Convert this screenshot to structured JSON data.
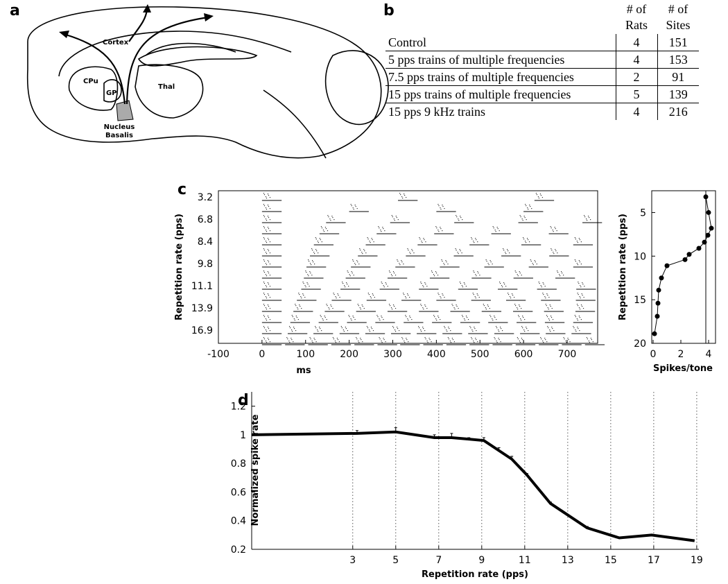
{
  "panel_labels": [
    "a",
    "b",
    "c",
    "d"
  ],
  "diagram": {
    "cortex": "Cortex",
    "cpu": "CPu",
    "gp": "GP",
    "thal": "Thal",
    "nucleus_basalis": [
      "Nucleus",
      "Basalis"
    ]
  },
  "table": {
    "header": [
      "# of Rats",
      "# of Sites"
    ],
    "rows": [
      [
        "Control",
        4,
        151
      ],
      [
        "5 pps trains of multiple frequencies",
        4,
        153
      ],
      [
        "7.5 pps trains of multiple frequencies",
        2,
        91
      ],
      [
        "15 pps trains of multiple frequencies",
        5,
        139
      ],
      [
        "15 pps 9 kHz trains",
        4,
        216
      ]
    ]
  },
  "chart_data": [
    {
      "type": "raster",
      "xlabel": "ms",
      "ylabel": "Repetition rate (pps)",
      "categories": [
        "3.2",
        null,
        "6.8",
        null,
        "8.4",
        null,
        "9.8",
        null,
        "11.1",
        null,
        "13.9",
        null,
        "16.9",
        null
      ],
      "onsets": [
        [
          0,
          312,
          625
        ],
        [
          0,
          200,
          400,
          600
        ],
        [
          0,
          147,
          294,
          441,
          588,
          735
        ],
        [
          0,
          132,
          263,
          395,
          526,
          658
        ],
        [
          0,
          119,
          238,
          357,
          476,
          595,
          714
        ],
        [
          0,
          110,
          220,
          330,
          440,
          549,
          659
        ],
        [
          0,
          102,
          204,
          306,
          408,
          510,
          612,
          714
        ],
        [
          0,
          96,
          192,
          288,
          385,
          481,
          577,
          673
        ],
        [
          0,
          90,
          180,
          270,
          360,
          450,
          541,
          631,
          721
        ],
        [
          0,
          80,
          160,
          240,
          320,
          400,
          480,
          560,
          640,
          720
        ],
        [
          0,
          72,
          144,
          216,
          288,
          360,
          432,
          504,
          576,
          647,
          719
        ],
        [
          0,
          65,
          130,
          195,
          260,
          325,
          390,
          455,
          519,
          584,
          649,
          714
        ],
        [
          0,
          59,
          118,
          178,
          237,
          296,
          355,
          414,
          473,
          533,
          592,
          651,
          710
        ],
        [
          0,
          53,
          106,
          159,
          212,
          265,
          317,
          370,
          423,
          476,
          529,
          582,
          635,
          688,
          741
        ]
      ],
      "xlim": [
        -100,
        770
      ],
      "xticks": [
        -100,
        0,
        100,
        200,
        300,
        400,
        500,
        600,
        700
      ]
    },
    {
      "type": "line",
      "xlabel": "Spikes/tone",
      "ylabel": "Repetition rate (pps)",
      "x": [
        3.8,
        4.0,
        4.2,
        3.95,
        3.7,
        3.3,
        2.6,
        2.3,
        1.0,
        0.6,
        0.4,
        0.35,
        0.3,
        0.1
      ],
      "values": [
        3.2,
        5.0,
        6.8,
        7.6,
        8.4,
        9.1,
        9.8,
        10.4,
        11.1,
        12.5,
        13.9,
        15.4,
        16.9,
        18.9
      ],
      "xlim": [
        -0.1,
        4.5
      ],
      "xticks": [
        0,
        2,
        4
      ],
      "ylim": [
        20,
        2.5
      ],
      "yticks": [
        5,
        10,
        15,
        20
      ],
      "vline": 3.8,
      "color": "#000000",
      "markers": true
    },
    {
      "type": "line",
      "xlabel": "Repetition rate (pps)",
      "ylabel": "Normalized spike rate",
      "x": [
        -1.7,
        3.2,
        5,
        6.8,
        7.6,
        8.4,
        9.1,
        9.8,
        10.4,
        11.1,
        12.2,
        13.9,
        15.4,
        16.9,
        18.9
      ],
      "values": [
        1.0,
        1.01,
        1.02,
        0.98,
        0.98,
        0.97,
        0.96,
        0.89,
        0.83,
        0.72,
        0.52,
        0.35,
        0.28,
        0.3,
        0.26
      ],
      "errors": [
        0,
        0.02,
        0.03,
        0.02,
        0.03,
        0.01,
        0.02,
        0.02,
        0.02,
        0.01,
        0.01,
        0.01,
        0,
        0,
        0
      ],
      "xlim": [
        -1.7,
        19.1
      ],
      "xticks": [
        3,
        5,
        7,
        9,
        11,
        13,
        15,
        17,
        19
      ],
      "ylim": [
        0.2,
        1.3
      ],
      "yticks": [
        0.2,
        0.4,
        0.6,
        0.8,
        1,
        1.2
      ],
      "grid": "x",
      "color": "#000000",
      "markers": false
    }
  ]
}
